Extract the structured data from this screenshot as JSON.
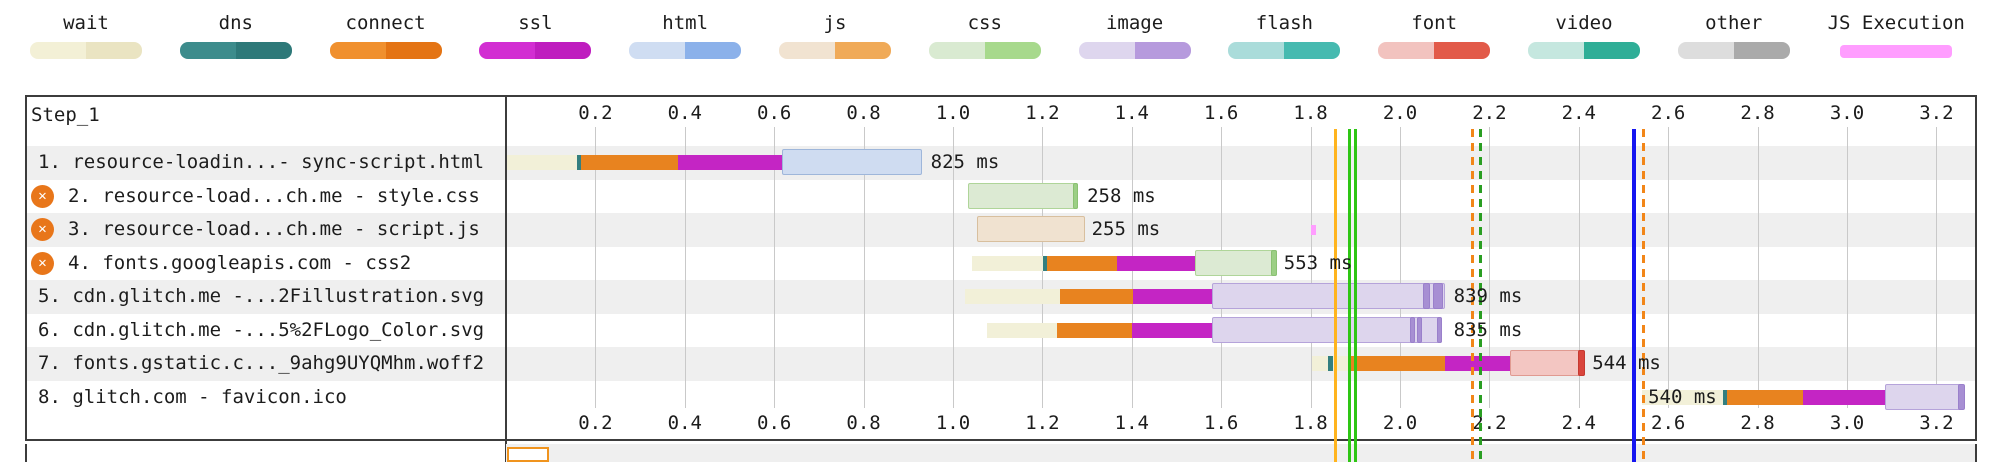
{
  "legend": {
    "items": [
      {
        "label": "wait",
        "light": "#f3f0d6",
        "dark": "#eae4c2"
      },
      {
        "label": "dns",
        "light": "#3d8c8c",
        "dark": "#2e7979"
      },
      {
        "label": "connect",
        "light": "#f0902e",
        "dark": "#e47414"
      },
      {
        "label": "ssl",
        "light": "#d22ed2",
        "dark": "#bf1dbf"
      },
      {
        "label": "html",
        "light": "#cfddf2",
        "dark": "#8bb1ea"
      },
      {
        "label": "js",
        "light": "#f1e3d1",
        "dark": "#f0aa58"
      },
      {
        "label": "css",
        "light": "#d9ead1",
        "dark": "#a7d98c"
      },
      {
        "label": "image",
        "light": "#ded6ee",
        "dark": "#b69add"
      },
      {
        "label": "flash",
        "light": "#aadcda",
        "dark": "#46bab0"
      },
      {
        "label": "font",
        "light": "#f2c3bf",
        "dark": "#e25a49"
      },
      {
        "label": "video",
        "light": "#c5e7df",
        "dark": "#2fae97"
      },
      {
        "label": "other",
        "light": "#dddddd",
        "dark": "#aaaaaa"
      },
      {
        "label": "JS Execution",
        "light": "#ff9dff",
        "dark": "#ff9dff",
        "mini": true
      }
    ]
  },
  "chart_data": {
    "type": "bar",
    "variant": "waterfall",
    "title": "Step_1",
    "x_unit": "seconds",
    "xlim": [
      0,
      3.29
    ],
    "x_ticks": [
      0.2,
      0.4,
      0.6,
      0.8,
      1.0,
      1.2,
      1.4,
      1.6,
      1.8,
      2.0,
      2.2,
      2.4,
      2.6,
      2.8,
      3.0,
      3.2
    ],
    "grid": true,
    "phases": {
      "wait": {
        "fill": "#f2f0d8",
        "border": "#d9d6ae",
        "thin": true
      },
      "dns": {
        "fill": "#337f7f",
        "border": "#337f7f",
        "thin": true
      },
      "connect": {
        "fill": "#e8831f",
        "border": "#d06e10",
        "thin": true
      },
      "ssl": {
        "fill": "#c425c4",
        "border": "#a814a8",
        "thin": true
      },
      "html": {
        "fill": "#cfdcf1",
        "border": "#9eb6da"
      },
      "js": {
        "fill": "#f0e2d0",
        "border": "#d8bf9e"
      },
      "css": {
        "fill": "#dcead3",
        "border": "#afd599"
      },
      "css_dl": {
        "fill": "#9ccf85",
        "border": "#8ac173"
      },
      "image": {
        "fill": "#ddd5ed",
        "border": "#b5a3da"
      },
      "image_dl": {
        "fill": "#a78fd3",
        "border": "#9a80cb"
      },
      "font": {
        "fill": "#f3c6c2",
        "border": "#e09a91"
      },
      "font_dl": {
        "fill": "#d9453c",
        "border": "#c53a31"
      },
      "js_exec": {
        "fill": "#ff9dff",
        "border": "#ff9dff",
        "thin": true,
        "mini": true
      }
    },
    "requests": [
      {
        "label": "1. resource-loadin...- sync-script.html",
        "blocked": false,
        "duration_label": "825 ms",
        "label_at": 0.95,
        "segments": [
          {
            "phase": "wait",
            "start": 0.002,
            "end": 0.159
          },
          {
            "phase": "dns",
            "start": 0.159,
            "end": 0.168
          },
          {
            "phase": "connect",
            "start": 0.168,
            "end": 0.385
          },
          {
            "phase": "ssl",
            "start": 0.385,
            "end": 0.617
          },
          {
            "phase": "html",
            "start": 0.617,
            "end": 0.931
          }
        ]
      },
      {
        "label": "2. resource-load...ch.me - style.css",
        "blocked": true,
        "duration_label": "258 ms",
        "label_at": 1.3,
        "segments": [
          {
            "phase": "css",
            "start": 1.034,
            "end": 1.28
          },
          {
            "phase": "css_dl",
            "start": 1.268,
            "end": 1.28
          }
        ]
      },
      {
        "label": "3. resource-load...ch.me - script.js",
        "blocked": true,
        "duration_label": "255 ms",
        "label_at": 1.31,
        "segments": [
          {
            "phase": "js",
            "start": 1.054,
            "end": 1.295
          },
          {
            "phase": "js_exec",
            "start": 1.8,
            "end": 1.812
          }
        ]
      },
      {
        "label": "4. fonts.googleapis.com - css2",
        "blocked": true,
        "duration_label": "553 ms",
        "label_at": 1.74,
        "segments": [
          {
            "phase": "wait",
            "start": 1.042,
            "end": 1.201
          },
          {
            "phase": "dns",
            "start": 1.201,
            "end": 1.21
          },
          {
            "phase": "connect",
            "start": 1.21,
            "end": 1.367
          },
          {
            "phase": "ssl",
            "start": 1.367,
            "end": 1.541
          },
          {
            "phase": "css",
            "start": 1.541,
            "end": 1.725
          },
          {
            "phase": "css_dl",
            "start": 1.712,
            "end": 1.725
          }
        ]
      },
      {
        "label": "5. cdn.glitch.me -...2Fillustration.svg",
        "blocked": false,
        "duration_label": "839 ms",
        "label_at": 2.12,
        "segments": [
          {
            "phase": "wait",
            "start": 1.027,
            "end": 1.239
          },
          {
            "phase": "connect",
            "start": 1.239,
            "end": 1.403
          },
          {
            "phase": "ssl",
            "start": 1.403,
            "end": 1.579
          },
          {
            "phase": "image",
            "start": 1.579,
            "end": 2.101
          },
          {
            "phase": "image_dl",
            "start": 2.051,
            "end": 2.067
          },
          {
            "phase": "image_dl",
            "start": 2.074,
            "end": 2.096
          }
        ]
      },
      {
        "label": "6. cdn.glitch.me -...5%2FLogo_Color.svg",
        "blocked": false,
        "duration_label": "835 ms",
        "label_at": 2.12,
        "segments": [
          {
            "phase": "wait",
            "start": 1.076,
            "end": 1.233
          },
          {
            "phase": "connect",
            "start": 1.233,
            "end": 1.4
          },
          {
            "phase": "ssl",
            "start": 1.4,
            "end": 1.579
          },
          {
            "phase": "image",
            "start": 1.579,
            "end": 2.094
          },
          {
            "phase": "image_dl",
            "start": 2.022,
            "end": 2.034
          },
          {
            "phase": "image_dl",
            "start": 2.038,
            "end": 2.049
          },
          {
            "phase": "image_dl",
            "start": 2.083,
            "end": 2.094
          }
        ]
      },
      {
        "label": "7. fonts.gstatic.c..._9ahg9UYQMhm.woff2",
        "blocked": false,
        "duration_label": "544 ms",
        "label_at": 2.43,
        "segments": [
          {
            "phase": "wait",
            "start": 1.803,
            "end": 1.883
          },
          {
            "phase": "dns",
            "start": 1.839,
            "end": 1.85
          },
          {
            "phase": "connect",
            "start": 1.883,
            "end": 2.1
          },
          {
            "phase": "ssl",
            "start": 2.1,
            "end": 2.246
          },
          {
            "phase": "font",
            "start": 2.246,
            "end": 2.414
          },
          {
            "phase": "font_dl",
            "start": 2.398,
            "end": 2.414
          }
        ]
      },
      {
        "label": "8. glitch.com - favicon.ico",
        "blocked": false,
        "duration_label": "540 ms",
        "label_at": 2.555,
        "label_over_bar": true,
        "segments": [
          {
            "phase": "wait",
            "start": 2.541,
            "end": 2.722
          },
          {
            "phase": "dns",
            "start": 2.722,
            "end": 2.731
          },
          {
            "phase": "connect",
            "start": 2.731,
            "end": 2.901
          },
          {
            "phase": "ssl",
            "start": 2.901,
            "end": 3.085
          },
          {
            "phase": "image",
            "start": 3.085,
            "end": 3.259
          },
          {
            "phase": "image_dl",
            "start": 3.248,
            "end": 3.264
          }
        ]
      }
    ],
    "markers": [
      {
        "name": "marker-amber-solid",
        "t": 1.855,
        "color": "#ffb41e",
        "style": "solid",
        "width": 3
      },
      {
        "name": "marker-green-solid-1",
        "t": 1.886,
        "color": "#2ec614",
        "style": "solid",
        "width": 3
      },
      {
        "name": "marker-green-solid-2",
        "t": 1.901,
        "color": "#2ec614",
        "style": "solid",
        "width": 3
      },
      {
        "name": "marker-orange-dashed-1",
        "t": 2.163,
        "color": "#f28618",
        "style": "dashed",
        "width": 3
      },
      {
        "name": "marker-green-dashed",
        "t": 2.181,
        "color": "#2a9e22",
        "style": "dashed",
        "width": 3
      },
      {
        "name": "marker-blue-solid",
        "t": 2.523,
        "color": "#1616f0",
        "style": "solid",
        "width": 4
      },
      {
        "name": "marker-orange-dashed-2",
        "t": 2.544,
        "color": "#f28618",
        "style": "dashed",
        "width": 3
      }
    ],
    "legend_position": "top"
  }
}
